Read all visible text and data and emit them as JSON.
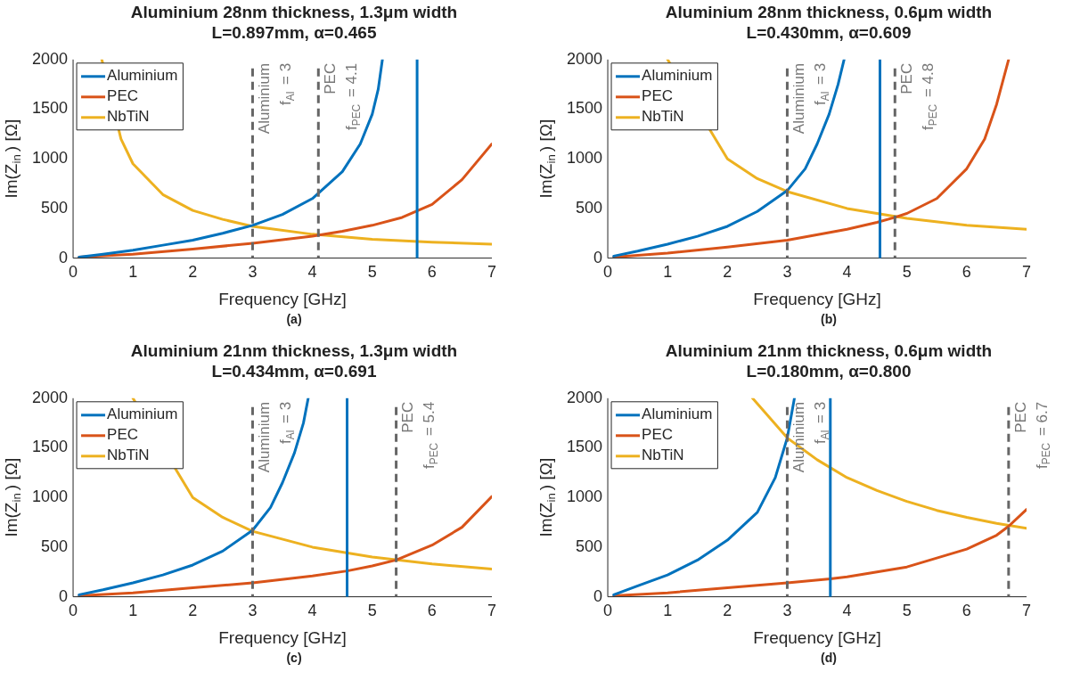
{
  "chart_data": [
    {
      "type": "line",
      "title": "Aluminium 28nm thickness, 1.3μm width",
      "subtitle": "L=0.897mm, α=0.465",
      "xlabel": "Frequency [GHz]",
      "ylabel": "Im(Z$_{in}$) [Ω]",
      "annotations": [
        "(a)"
      ],
      "legend": "top left",
      "grid": false,
      "xlim": [
        0,
        7
      ],
      "xticks": [
        0,
        1,
        2,
        3,
        4,
        5,
        6,
        7
      ],
      "ylim": [
        0,
        2000
      ],
      "yticks": [
        0,
        500,
        1000,
        1500,
        2000
      ],
      "series": [
        {
          "name": "Aluminium",
          "color": "#0072bd",
          "x": [
            0.1,
            0.5,
            1,
            1.5,
            2,
            2.5,
            3,
            3.5,
            4,
            4.5,
            4.8,
            5,
            5.1,
            5.17
          ],
          "values": [
            10,
            40,
            80,
            130,
            180,
            250,
            330,
            440,
            600,
            870,
            1150,
            1450,
            1700,
            2000
          ]
        },
        {
          "name": "PEC",
          "color": "#d95319",
          "x": [
            0.1,
            1,
            2,
            3,
            4,
            4.5,
            5,
            5.5,
            6,
            6.5,
            7
          ],
          "values": [
            10,
            40,
            90,
            150,
            220,
            270,
            330,
            410,
            540,
            790,
            1150
          ]
        },
        {
          "name": "NbTiN",
          "color": "#edb120",
          "x": [
            0.48,
            0.6,
            0.8,
            1,
            1.5,
            2,
            2.5,
            3,
            4,
            5,
            6,
            7
          ],
          "values": [
            2000,
            null,
            1200,
            950,
            640,
            480,
            390,
            320,
            240,
            190,
            160,
            140
          ]
        }
      ],
      "ref_lines": [
        {
          "axis": "x",
          "value": 3,
          "label": "Aluminium\nf$_{Al}$ = 3",
          "color": "#666666",
          "line_style": "dashed"
        },
        {
          "axis": "x",
          "value": 4.1,
          "label": "PEC\nf$_{PEC}$ = 4.1",
          "color": "#666666",
          "line_style": "dashed"
        },
        {
          "axis": "x",
          "value": 5.75,
          "color": "#0072bd",
          "line_style": "solid"
        }
      ]
    },
    {
      "type": "line",
      "title": "Aluminium 28nm thickness, 0.6μm width",
      "subtitle": "L=0.430mm, α=0.609",
      "xlabel": "Frequency [GHz]",
      "ylabel": "Im(Z$_{in}$) [Ω]",
      "annotations": [
        "(b)"
      ],
      "legend": "top left",
      "grid": false,
      "xlim": [
        0,
        7
      ],
      "xticks": [
        0,
        1,
        2,
        3,
        4,
        5,
        6,
        7
      ],
      "ylim": [
        0,
        2000
      ],
      "yticks": [
        0,
        500,
        1000,
        1500,
        2000
      ],
      "series": [
        {
          "name": "Aluminium",
          "color": "#0072bd",
          "x": [
            0.1,
            0.5,
            1,
            1.5,
            2,
            2.5,
            3,
            3.3,
            3.5,
            3.7,
            3.85,
            3.95
          ],
          "values": [
            20,
            70,
            140,
            220,
            320,
            470,
            680,
            900,
            1150,
            1450,
            1750,
            2000
          ]
        },
        {
          "name": "PEC",
          "color": "#d95319",
          "x": [
            0.1,
            1,
            2,
            3,
            4,
            4.5,
            4.8,
            5,
            5.5,
            6,
            6.3,
            6.5,
            6.7
          ],
          "values": [
            10,
            50,
            110,
            180,
            290,
            360,
            410,
            450,
            600,
            900,
            1200,
            1550,
            2000
          ]
        },
        {
          "name": "NbTiN",
          "color": "#edb120",
          "x": [
            1,
            1.25,
            1.5,
            2,
            2.5,
            3,
            4,
            5,
            6,
            7
          ],
          "values": [
            2000,
            null,
            null,
            1000,
            800,
            670,
            500,
            400,
            330,
            290
          ]
        }
      ],
      "ref_lines": [
        {
          "axis": "x",
          "value": 3,
          "label": "Aluminium\nf$_{Al}$ = 3",
          "color": "#666666",
          "line_style": "dashed"
        },
        {
          "axis": "x",
          "value": 4.8,
          "label": "PEC\nf$_{PEC}$ = 4.8",
          "color": "#666666",
          "line_style": "dashed"
        },
        {
          "axis": "x",
          "value": 4.55,
          "color": "#0072bd",
          "line_style": "solid"
        }
      ]
    },
    {
      "type": "line",
      "title": "Aluminium 21nm thickness, 1.3μm width",
      "subtitle": "L=0.434mm, α=0.691",
      "xlabel": "Frequency [GHz]",
      "ylabel": "Im(Z$_{in}$) [Ω]",
      "annotations": [
        "(c)"
      ],
      "legend": "top left",
      "grid": false,
      "xlim": [
        0,
        7
      ],
      "xticks": [
        0,
        1,
        2,
        3,
        4,
        5,
        6,
        7
      ],
      "ylim": [
        0,
        2000
      ],
      "yticks": [
        0,
        500,
        1000,
        1500,
        2000
      ],
      "series": [
        {
          "name": "Aluminium",
          "color": "#0072bd",
          "x": [
            0.1,
            0.5,
            1,
            1.5,
            2,
            2.5,
            3,
            3.3,
            3.5,
            3.7,
            3.85,
            3.93
          ],
          "values": [
            20,
            70,
            140,
            220,
            320,
            460,
            670,
            900,
            1150,
            1450,
            1750,
            2000
          ]
        },
        {
          "name": "PEC",
          "color": "#d95319",
          "x": [
            0.1,
            1,
            2,
            3,
            4,
            4.58,
            5,
            5.4,
            6,
            6.5,
            7
          ],
          "values": [
            10,
            40,
            90,
            140,
            210,
            260,
            310,
            370,
            520,
            700,
            1010
          ]
        },
        {
          "name": "NbTiN",
          "color": "#edb120",
          "x": [
            1,
            1.25,
            1.5,
            2,
            2.5,
            3,
            4,
            5,
            6,
            7
          ],
          "values": [
            2000,
            null,
            null,
            1000,
            800,
            660,
            500,
            400,
            330,
            280
          ]
        }
      ],
      "ref_lines": [
        {
          "axis": "x",
          "value": 3,
          "label": "Aluminium\nf$_{Al}$ = 3",
          "color": "#666666",
          "line_style": "dashed"
        },
        {
          "axis": "x",
          "value": 5.4,
          "label": "PEC\nf$_{PEC}$ = 5.4",
          "color": "#666666",
          "line_style": "dashed"
        },
        {
          "axis": "x",
          "value": 4.58,
          "color": "#0072bd",
          "line_style": "solid"
        }
      ]
    },
    {
      "type": "line",
      "title": "Aluminium 21nm thickness, 0.6μm width",
      "subtitle": "L=0.180mm, α=0.800",
      "xlabel": "Frequency [GHz]",
      "ylabel": "Im(Z$_{in}$) [Ω]",
      "annotations": [
        "(d)"
      ],
      "legend": "top left",
      "grid": false,
      "xlim": [
        0,
        7
      ],
      "xticks": [
        0,
        1,
        2,
        3,
        4,
        5,
        6,
        7
      ],
      "ylim": [
        0,
        2000
      ],
      "yticks": [
        0,
        500,
        1000,
        1500,
        2000
      ],
      "series": [
        {
          "name": "Aluminium",
          "color": "#0072bd",
          "x": [
            0.1,
            0.5,
            1,
            1.5,
            2,
            2.5,
            2.8,
            3,
            3.12
          ],
          "values": [
            20,
            110,
            220,
            370,
            570,
            850,
            1200,
            1600,
            2000
          ]
        },
        {
          "name": "PEC",
          "color": "#d95319",
          "x": [
            0.1,
            1,
            2,
            3,
            3.72,
            4,
            5,
            6,
            6.5,
            6.7,
            7
          ],
          "values": [
            10,
            40,
            90,
            140,
            180,
            200,
            300,
            480,
            620,
            710,
            880
          ]
        },
        {
          "name": "NbTiN",
          "color": "#edb120",
          "x": [
            2.42,
            3,
            3.5,
            4,
            4.5,
            5,
            5.5,
            6,
            6.5,
            7
          ],
          "values": [
            2000,
            1600,
            1380,
            1200,
            1070,
            960,
            870,
            800,
            740,
            690
          ]
        }
      ],
      "ref_lines": [
        {
          "axis": "x",
          "value": 3,
          "label": "Aluminium\nf$_{Al}$ = 3",
          "color": "#666666",
          "line_style": "dashed"
        },
        {
          "axis": "x",
          "value": 6.7,
          "label": "PEC\nf$_{PEC}$ = 6.7",
          "color": "#666666",
          "line_style": "dashed"
        },
        {
          "axis": "x",
          "value": 3.72,
          "color": "#0072bd",
          "line_style": "solid"
        }
      ]
    }
  ]
}
